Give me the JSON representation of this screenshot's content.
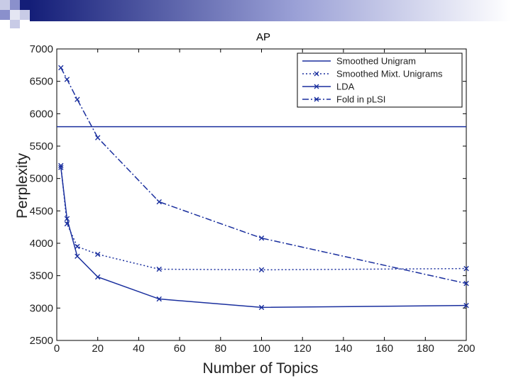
{
  "chart_data": {
    "type": "line",
    "title": "AP",
    "xlabel": "Number of Topics",
    "ylabel": "Perplexity",
    "xlim": [
      0,
      200
    ],
    "ylim": [
      2500,
      7000
    ],
    "xticks": [
      0,
      20,
      40,
      60,
      80,
      100,
      120,
      140,
      160,
      180,
      200
    ],
    "yticks": [
      2500,
      3000,
      3500,
      4000,
      4500,
      5000,
      5500,
      6000,
      6500,
      7000
    ],
    "grid": false,
    "legend_position": "top-right",
    "series": [
      {
        "name": "Smoothed Unigram",
        "style": "solid",
        "marker": "none",
        "x": [
          0,
          200
        ],
        "y": [
          5800,
          5800
        ]
      },
      {
        "name": "Smoothed Mixt. Unigrams",
        "style": "dotted",
        "marker": "x",
        "x": [
          2,
          5,
          10,
          20,
          50,
          100,
          200
        ],
        "y": [
          5200,
          4300,
          3950,
          3830,
          3600,
          3590,
          3610
        ]
      },
      {
        "name": "LDA",
        "style": "solid",
        "marker": "x",
        "x": [
          2,
          5,
          10,
          20,
          50,
          100,
          200
        ],
        "y": [
          5170,
          4380,
          3800,
          3480,
          3140,
          3010,
          3040
        ]
      },
      {
        "name": "Fold in pLSI",
        "style": "dashdot",
        "marker": "x",
        "x": [
          2,
          5,
          10,
          20,
          50,
          100,
          200
        ],
        "y": [
          6710,
          6530,
          6220,
          5630,
          4640,
          4080,
          3380
        ]
      }
    ]
  },
  "colors": {
    "line": "#1a2f9e",
    "deco_dark": "#141e78",
    "deco_light": "#c8cbe6"
  }
}
